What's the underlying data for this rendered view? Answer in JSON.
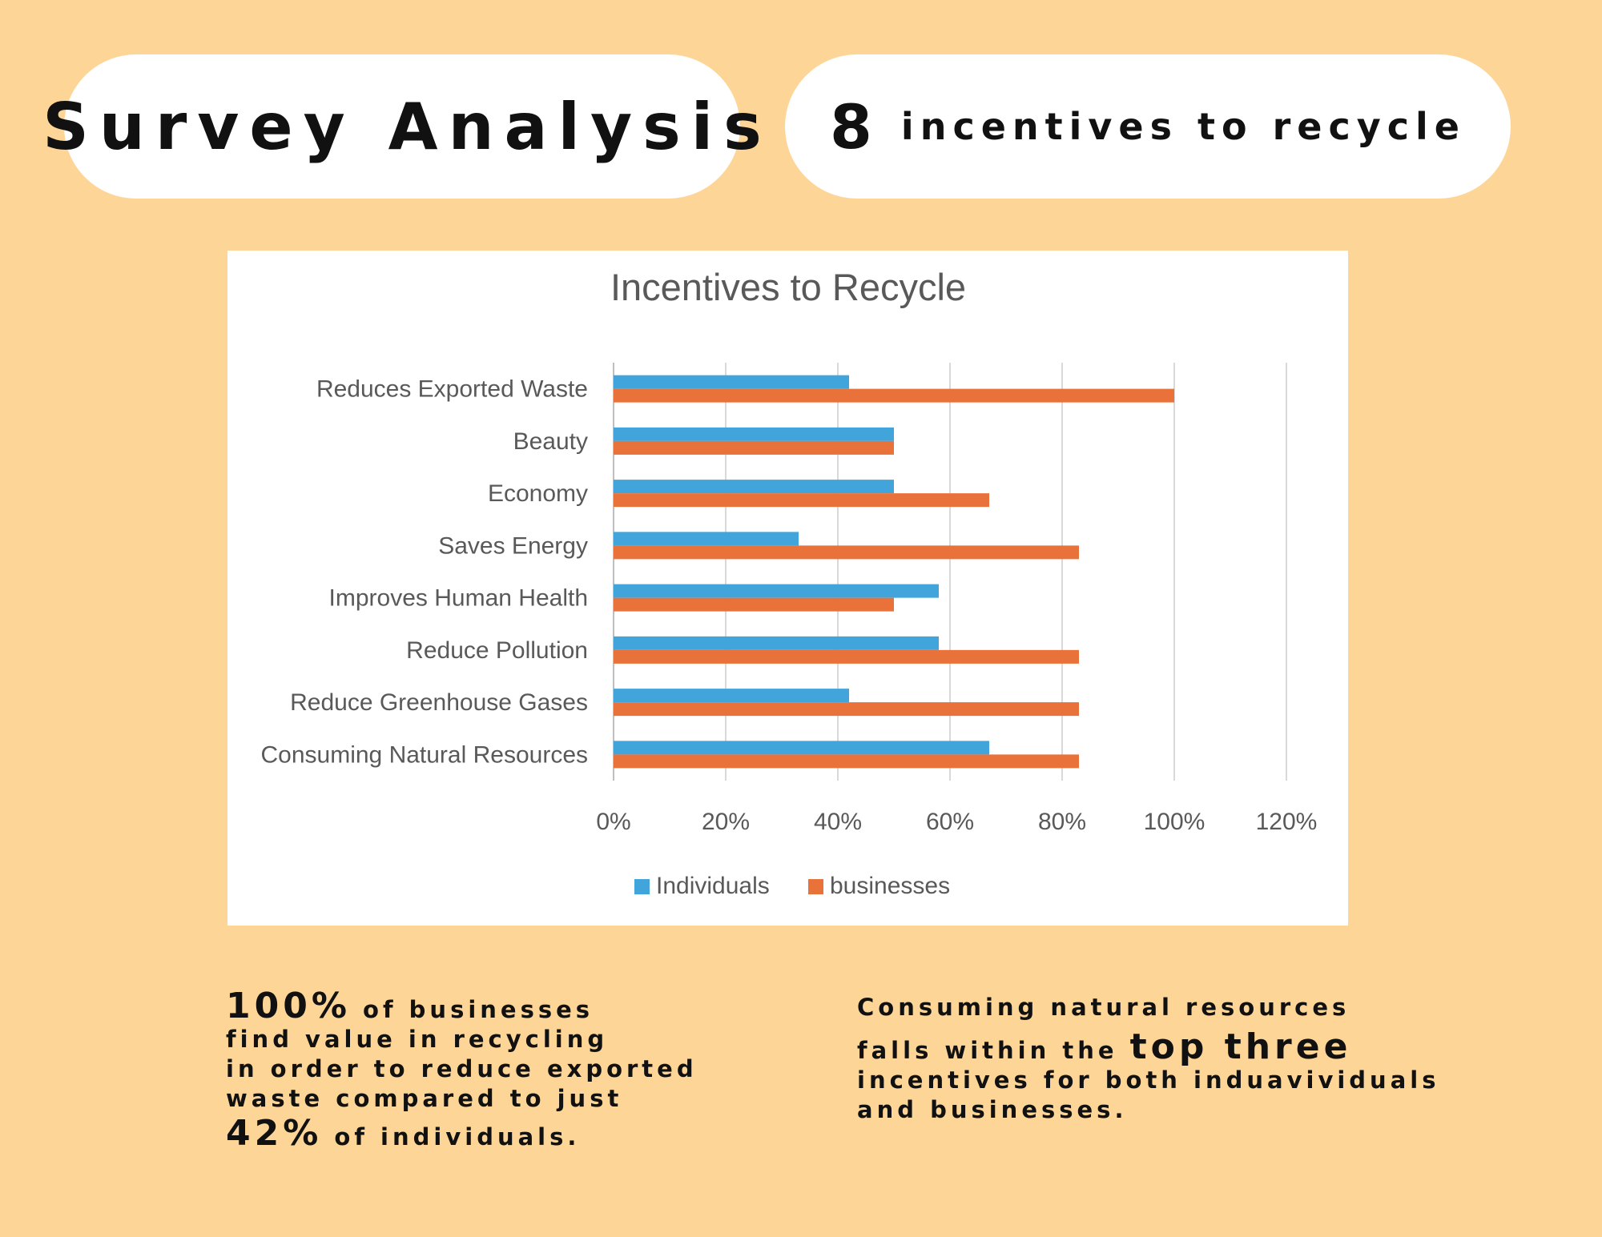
{
  "header": {
    "title": "Survey Analysis",
    "count": "8",
    "count_label": "incentives to recycle"
  },
  "chart_data": {
    "type": "bar",
    "orientation": "horizontal",
    "title": "Incentives to Recycle",
    "categories": [
      "Reduces Exported Waste",
      "Beauty",
      "Economy",
      "Saves Energy",
      "Improves Human Health",
      "Reduce Pollution",
      "Reduce Greenhouse Gases",
      "Consuming Natural Resources"
    ],
    "series": [
      {
        "name": "Individuals",
        "color": "#41a5dc",
        "values": [
          42,
          50,
          50,
          33,
          58,
          58,
          42,
          67
        ]
      },
      {
        "name": "businesses",
        "color": "#e9713a",
        "values": [
          100,
          50,
          67,
          83,
          50,
          83,
          83,
          83
        ]
      }
    ],
    "xlim": [
      0,
      120
    ],
    "xticks": [
      "0%",
      "20%",
      "40%",
      "60%",
      "80%",
      "100%",
      "120%"
    ],
    "grid": true,
    "legend_position": "bottom",
    "xlabel": "",
    "ylabel": ""
  },
  "notes": {
    "left": {
      "big1": "100%",
      "rest1": " of businesses",
      "line2": "find value in recycling",
      "line3": "in order to reduce exported",
      "line4": "waste compared to just",
      "big2": "42%",
      "rest5": " of individuals."
    },
    "right": {
      "line1": "Consuming natural resources",
      "line2_pre": "falls within the ",
      "line2_big": "top three",
      "line3": "incentives for both induavividuals",
      "line4": "and businesses."
    }
  }
}
